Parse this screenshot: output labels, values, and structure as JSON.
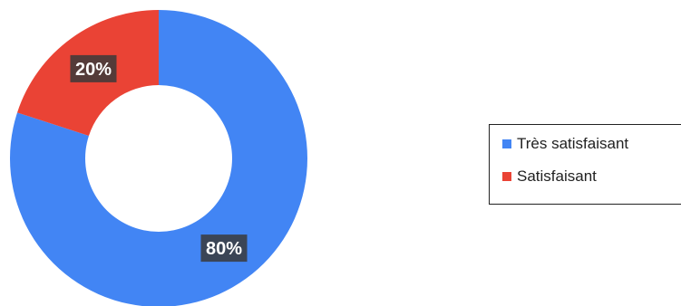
{
  "chart_data": {
    "type": "pie",
    "donut": true,
    "categories": [
      "Très satisfaisant",
      "Satisfaisant"
    ],
    "values": [
      80,
      20
    ],
    "data_labels": [
      "80%",
      "20%"
    ],
    "colors": [
      "#4285f4",
      "#ea4335"
    ],
    "legend": {
      "position": "right",
      "entries": [
        "Très satisfaisant",
        "Satisfaisant"
      ]
    }
  }
}
